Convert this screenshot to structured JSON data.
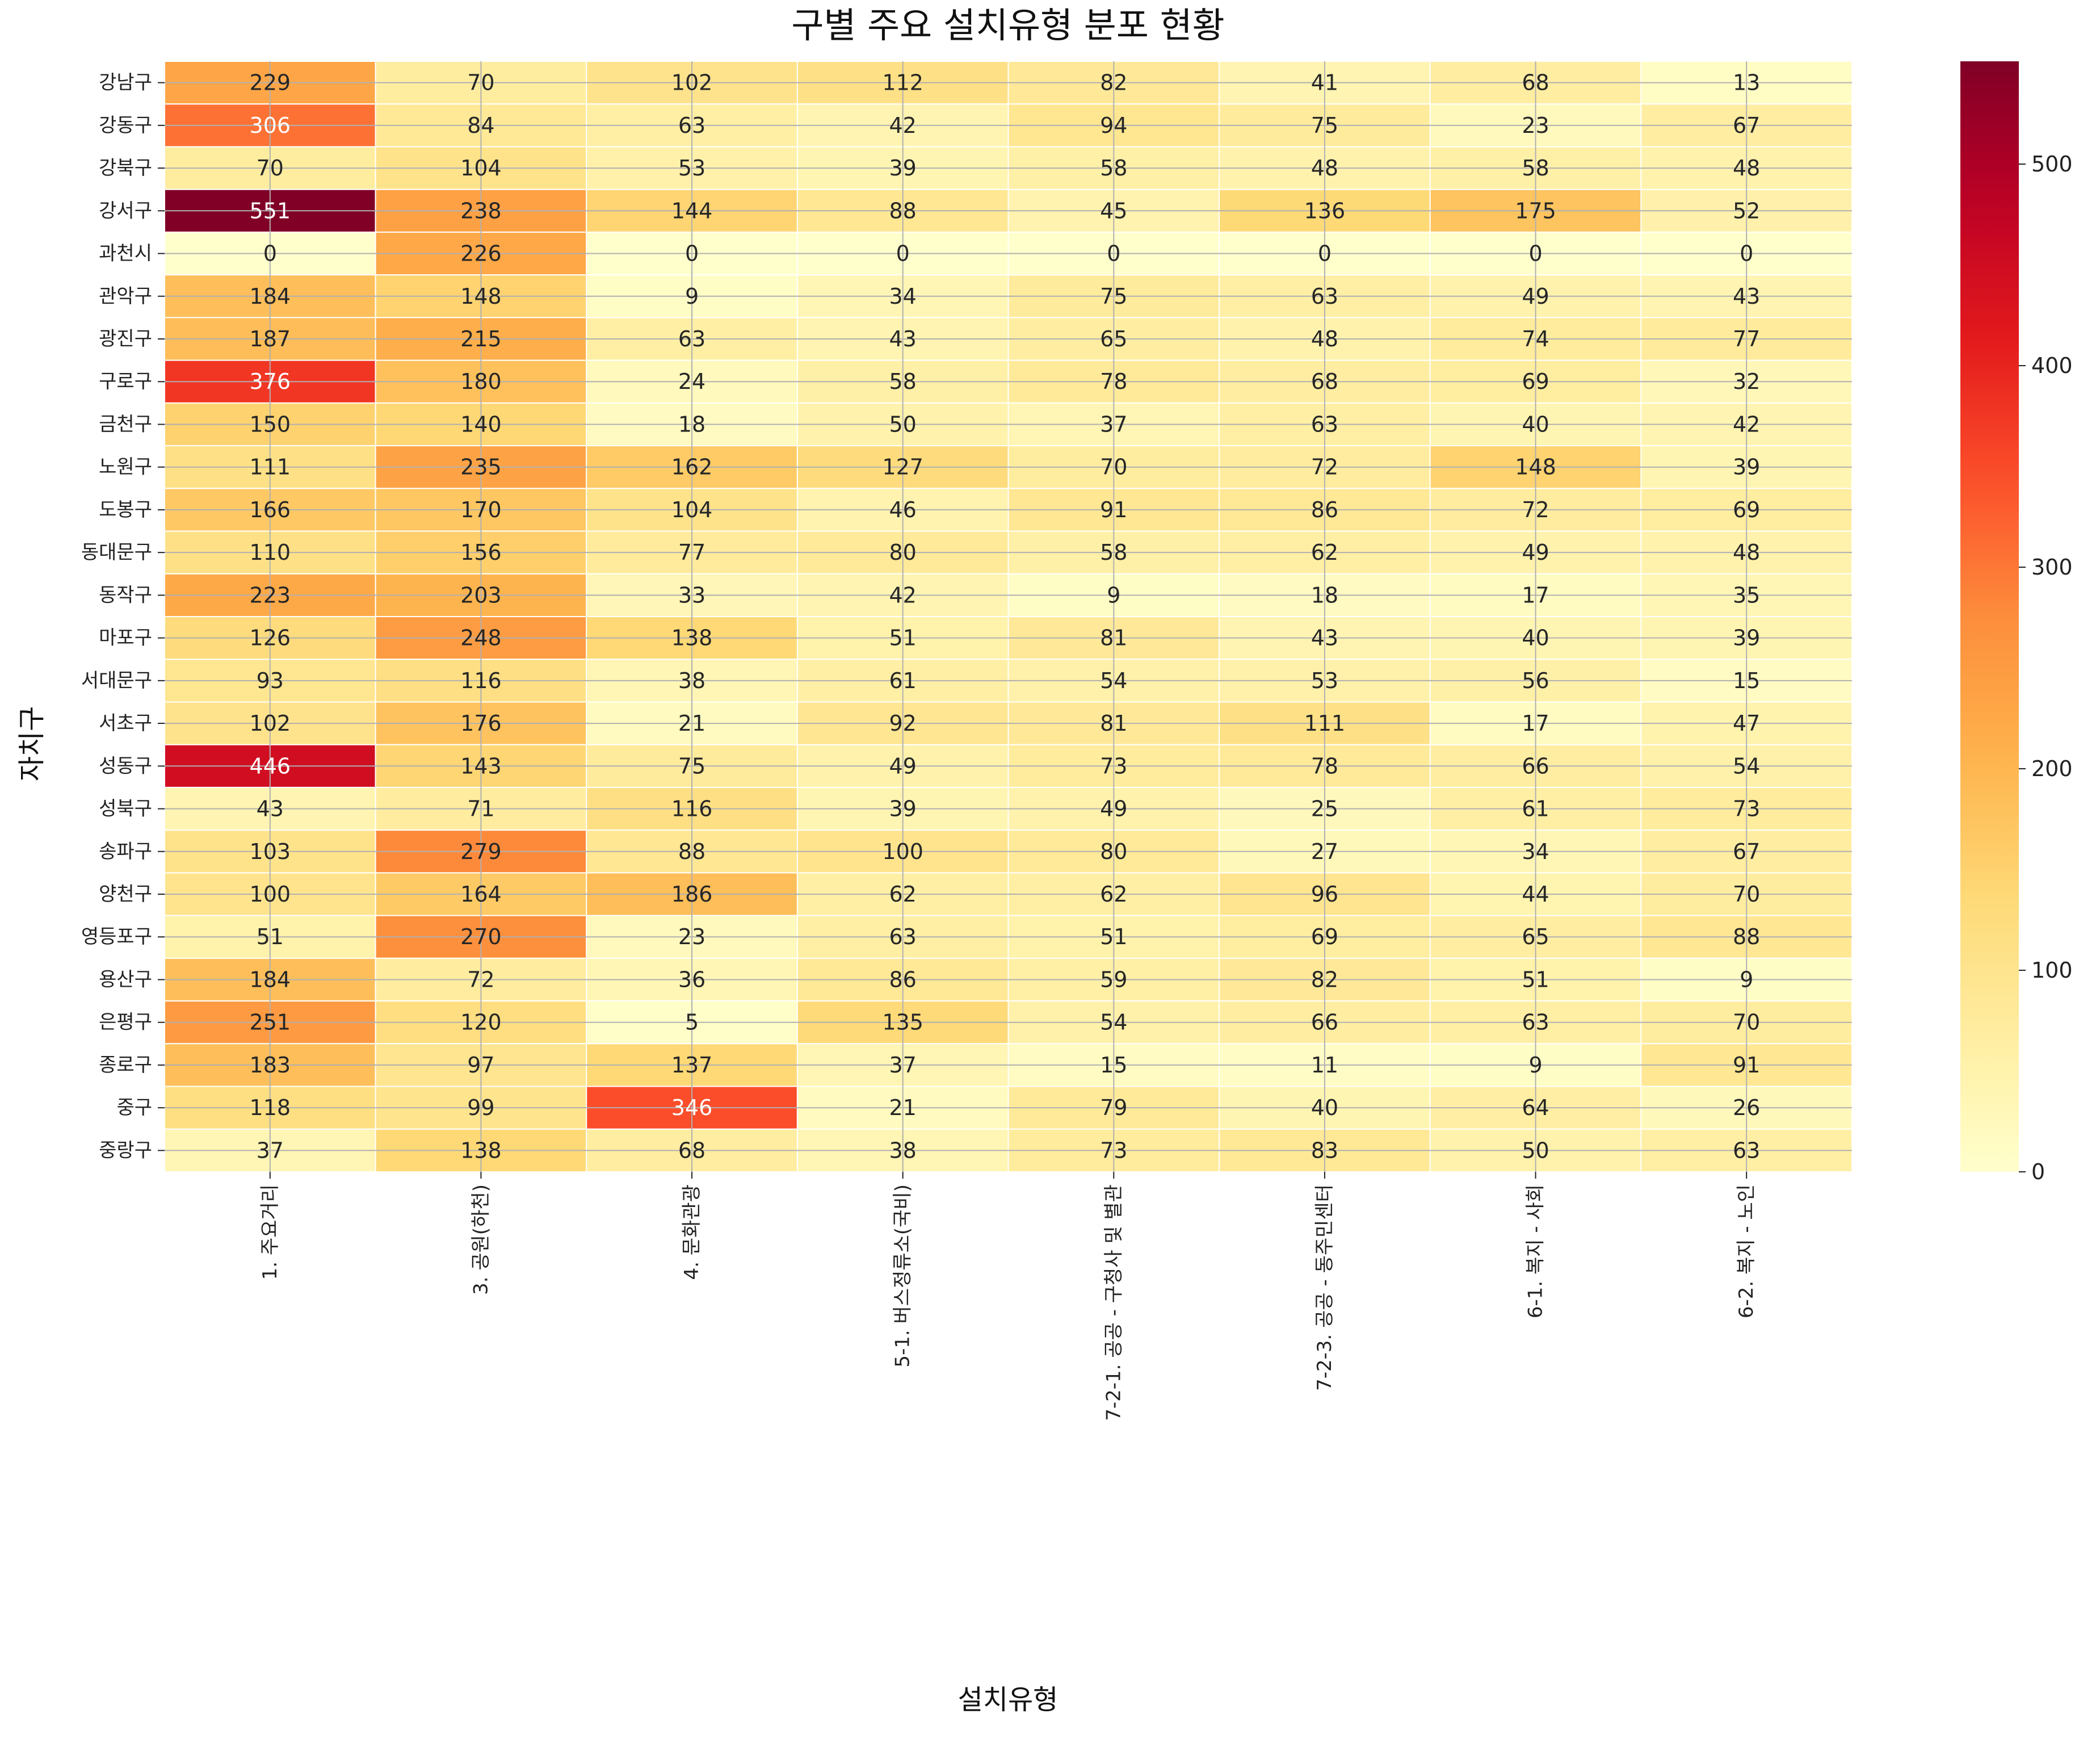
{
  "chart_data": {
    "type": "heatmap",
    "title": "구별 주요 설치유형 분포 현황",
    "xlabel": "설치유형",
    "ylabel": "자치구",
    "x": [
      "1. 주요거리",
      "3. 공원(하천)",
      "4. 문화관광",
      "5-1. 버스정류소(국비)",
      "7-2-1. 공공 - 구청사 및 별관",
      "7-2-3. 공공 - 동주민센터",
      "6-1. 복지 - 사회",
      "6-2. 복지 - 노인"
    ],
    "y": [
      "강남구",
      "강동구",
      "강북구",
      "강서구",
      "과천시",
      "관악구",
      "광진구",
      "구로구",
      "금천구",
      "노원구",
      "도봉구",
      "동대문구",
      "동작구",
      "마포구",
      "서대문구",
      "서초구",
      "성동구",
      "성북구",
      "송파구",
      "양천구",
      "영등포구",
      "용산구",
      "은평구",
      "종로구",
      "중구",
      "중랑구"
    ],
    "values": [
      [
        229,
        70,
        102,
        112,
        82,
        41,
        68,
        13
      ],
      [
        306,
        84,
        63,
        42,
        94,
        75,
        23,
        67
      ],
      [
        70,
        104,
        53,
        39,
        58,
        48,
        58,
        48
      ],
      [
        551,
        238,
        144,
        88,
        45,
        136,
        175,
        52
      ],
      [
        0,
        226,
        0,
        0,
        0,
        0,
        0,
        0
      ],
      [
        184,
        148,
        9,
        34,
        75,
        63,
        49,
        43
      ],
      [
        187,
        215,
        63,
        43,
        65,
        48,
        74,
        77
      ],
      [
        376,
        180,
        24,
        58,
        78,
        68,
        69,
        32
      ],
      [
        150,
        140,
        18,
        50,
        37,
        63,
        40,
        42
      ],
      [
        111,
        235,
        162,
        127,
        70,
        72,
        148,
        39
      ],
      [
        166,
        170,
        104,
        46,
        91,
        86,
        72,
        69
      ],
      [
        110,
        156,
        77,
        80,
        58,
        62,
        49,
        48
      ],
      [
        223,
        203,
        33,
        42,
        9,
        18,
        17,
        35
      ],
      [
        126,
        248,
        138,
        51,
        81,
        43,
        40,
        39
      ],
      [
        93,
        116,
        38,
        61,
        54,
        53,
        56,
        15
      ],
      [
        102,
        176,
        21,
        92,
        81,
        111,
        17,
        47
      ],
      [
        446,
        143,
        75,
        49,
        73,
        78,
        66,
        54
      ],
      [
        43,
        71,
        116,
        39,
        49,
        25,
        61,
        73
      ],
      [
        103,
        279,
        88,
        100,
        80,
        27,
        34,
        67
      ],
      [
        100,
        164,
        186,
        62,
        62,
        96,
        44,
        70
      ],
      [
        51,
        270,
        23,
        63,
        51,
        69,
        65,
        88
      ],
      [
        184,
        72,
        36,
        86,
        59,
        82,
        51,
        9
      ],
      [
        251,
        120,
        5,
        135,
        54,
        66,
        63,
        70
      ],
      [
        183,
        97,
        137,
        37,
        15,
        11,
        9,
        91
      ],
      [
        118,
        99,
        346,
        21,
        79,
        40,
        64,
        26
      ],
      [
        37,
        138,
        68,
        38,
        73,
        83,
        50,
        63
      ]
    ],
    "colorbar": {
      "range": [
        0,
        551
      ],
      "ticks": [
        0,
        100,
        200,
        300,
        400,
        500
      ]
    },
    "colormap": "YlOrRd",
    "grid": true
  }
}
